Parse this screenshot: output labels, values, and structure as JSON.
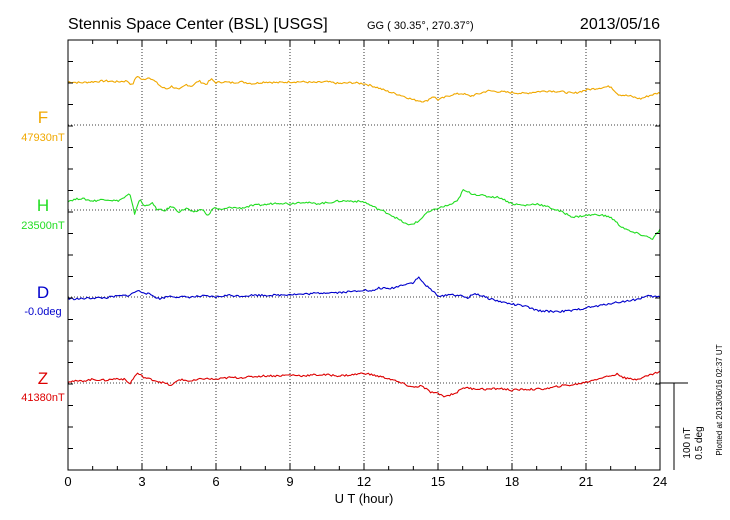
{
  "header": {
    "title": "Stennis Space Center (BSL)  [USGS]",
    "coords": "GG ( 30.35°, 270.37°)",
    "date": "2013/05/16"
  },
  "plotted_note": "Plotted at 2013/06/16 02:37 UT",
  "scale": {
    "nt": "100 nT",
    "deg": "0.5 deg"
  },
  "colors": {
    "F": "#f0a800",
    "H": "#22dd22",
    "D": "#0000cc",
    "Z": "#dd0000",
    "grid": "#000000"
  },
  "chart_data": {
    "type": "line",
    "xlabel": "U T (hour)",
    "xlim": [
      0,
      24
    ],
    "xticks": [
      0,
      3,
      6,
      9,
      12,
      15,
      18,
      21,
      24
    ],
    "series": [
      {
        "name": "F",
        "baseline_label": "47930nT",
        "color": "#f0a800",
        "points": [
          [
            0,
            48
          ],
          [
            0.5,
            47
          ],
          [
            1,
            48
          ],
          [
            1.5,
            49
          ],
          [
            2,
            48
          ],
          [
            2.4,
            49
          ],
          [
            2.6,
            44
          ],
          [
            2.8,
            55
          ],
          [
            3,
            50
          ],
          [
            3.3,
            53
          ],
          [
            3.5,
            49
          ],
          [
            3.8,
            42
          ],
          [
            4,
            40
          ],
          [
            4.2,
            43
          ],
          [
            4.5,
            39
          ],
          [
            4.8,
            45
          ],
          [
            5,
            43
          ],
          [
            5.3,
            49
          ],
          [
            5.6,
            45
          ],
          [
            5.8,
            51
          ],
          [
            6,
            47
          ],
          [
            6.3,
            48
          ],
          [
            6.6,
            47
          ],
          [
            7,
            48
          ],
          [
            7.5,
            46
          ],
          [
            8,
            48
          ],
          [
            8.5,
            47
          ],
          [
            9,
            48
          ],
          [
            9.5,
            48
          ],
          [
            10,
            47
          ],
          [
            10.5,
            48
          ],
          [
            11,
            46
          ],
          [
            11.5,
            47
          ],
          [
            12,
            46
          ],
          [
            12.5,
            42
          ],
          [
            13,
            37
          ],
          [
            13.5,
            33
          ],
          [
            14,
            28
          ],
          [
            14.5,
            26
          ],
          [
            14.8,
            32
          ],
          [
            15,
            28
          ],
          [
            15.3,
            31
          ],
          [
            15.6,
            34
          ],
          [
            16,
            35
          ],
          [
            16.3,
            32
          ],
          [
            16.7,
            35
          ],
          [
            17,
            38
          ],
          [
            17.5,
            37
          ],
          [
            18,
            36
          ],
          [
            18.5,
            35
          ],
          [
            19,
            37
          ],
          [
            19.5,
            38
          ],
          [
            20,
            37
          ],
          [
            20.5,
            35
          ],
          [
            21,
            39
          ],
          [
            21.5,
            41
          ],
          [
            22,
            43
          ],
          [
            22.3,
            34
          ],
          [
            22.8,
            32
          ],
          [
            23.2,
            29
          ],
          [
            23.6,
            33
          ],
          [
            24,
            36
          ]
        ]
      },
      {
        "name": "H",
        "baseline_label": "23500nT",
        "color": "#22dd22",
        "points": [
          [
            0,
            10
          ],
          [
            0.5,
            13
          ],
          [
            1,
            10
          ],
          [
            1.5,
            12
          ],
          [
            2,
            10
          ],
          [
            2.3,
            14
          ],
          [
            2.5,
            18
          ],
          [
            2.7,
            -4
          ],
          [
            2.9,
            12
          ],
          [
            3.1,
            4
          ],
          [
            3.4,
            8
          ],
          [
            3.6,
            1
          ],
          [
            3.9,
            -1
          ],
          [
            4.2,
            4
          ],
          [
            4.5,
            -2
          ],
          [
            4.8,
            2
          ],
          [
            5.1,
            -3
          ],
          [
            5.4,
            1
          ],
          [
            5.7,
            -6
          ],
          [
            5.9,
            3
          ],
          [
            6.2,
            0
          ],
          [
            6.6,
            3
          ],
          [
            7,
            2
          ],
          [
            7.5,
            5
          ],
          [
            8,
            6
          ],
          [
            8.5,
            8
          ],
          [
            9,
            7
          ],
          [
            9.5,
            9
          ],
          [
            10,
            7
          ],
          [
            10.5,
            8
          ],
          [
            11,
            10
          ],
          [
            11.5,
            10
          ],
          [
            12,
            9
          ],
          [
            12.5,
            2
          ],
          [
            13,
            -4
          ],
          [
            13.5,
            -12
          ],
          [
            13.8,
            -17
          ],
          [
            14.2,
            -13
          ],
          [
            14.5,
            -4
          ],
          [
            15,
            2
          ],
          [
            15.5,
            6
          ],
          [
            15.8,
            10
          ],
          [
            16,
            22
          ],
          [
            16.4,
            18
          ],
          [
            17,
            15
          ],
          [
            17.5,
            14
          ],
          [
            18,
            7
          ],
          [
            18.5,
            5
          ],
          [
            19,
            7
          ],
          [
            19.5,
            3
          ],
          [
            20,
            -2
          ],
          [
            20.5,
            -8
          ],
          [
            21,
            -6
          ],
          [
            21.5,
            -5
          ],
          [
            22,
            -8
          ],
          [
            22.4,
            -18
          ],
          [
            22.8,
            -24
          ],
          [
            23.3,
            -28
          ],
          [
            23.7,
            -32
          ],
          [
            24,
            -22
          ]
        ]
      },
      {
        "name": "D",
        "baseline_label": "-0.0deg",
        "color": "#0000cc",
        "points": [
          [
            0,
            -2
          ],
          [
            0.5,
            -2
          ],
          [
            1,
            -1
          ],
          [
            1.5,
            -1
          ],
          [
            2,
            1
          ],
          [
            2.5,
            2
          ],
          [
            2.8,
            7
          ],
          [
            3.1,
            5
          ],
          [
            3.4,
            2
          ],
          [
            3.7,
            -2
          ],
          [
            4.1,
            1
          ],
          [
            4.5,
            0
          ],
          [
            5,
            0
          ],
          [
            5.5,
            1
          ],
          [
            6,
            0
          ],
          [
            6.5,
            2
          ],
          [
            7,
            1
          ],
          [
            7.5,
            2
          ],
          [
            8,
            2
          ],
          [
            8.5,
            2
          ],
          [
            9,
            3
          ],
          [
            9.5,
            3
          ],
          [
            10,
            4
          ],
          [
            10.5,
            5
          ],
          [
            11,
            5
          ],
          [
            11.5,
            6
          ],
          [
            12,
            8
          ],
          [
            12.3,
            6
          ],
          [
            12.6,
            10
          ],
          [
            13,
            9
          ],
          [
            13.3,
            11
          ],
          [
            13.6,
            14
          ],
          [
            14,
            16
          ],
          [
            14.2,
            22
          ],
          [
            14.5,
            13
          ],
          [
            14.8,
            6
          ],
          [
            15.1,
            0
          ],
          [
            15.4,
            3
          ],
          [
            15.8,
            2
          ],
          [
            16.2,
            -1
          ],
          [
            16.5,
            4
          ],
          [
            17,
            -1
          ],
          [
            17.5,
            -5
          ],
          [
            18,
            -8
          ],
          [
            18.5,
            -10
          ],
          [
            19,
            -15
          ],
          [
            19.5,
            -16
          ],
          [
            20,
            -16
          ],
          [
            20.5,
            -15
          ],
          [
            21,
            -12
          ],
          [
            21.5,
            -10
          ],
          [
            22,
            -7
          ],
          [
            22.5,
            -5
          ],
          [
            23,
            -3
          ],
          [
            23.5,
            1
          ],
          [
            24,
            0
          ]
        ]
      },
      {
        "name": "Z",
        "baseline_label": "41380nT",
        "color": "#dd0000",
        "points": [
          [
            0,
            2
          ],
          [
            0.5,
            2
          ],
          [
            1,
            4
          ],
          [
            1.5,
            3
          ],
          [
            2,
            5
          ],
          [
            2.3,
            4
          ],
          [
            2.5,
            -1
          ],
          [
            2.8,
            11
          ],
          [
            3.1,
            6
          ],
          [
            3.5,
            3
          ],
          [
            3.9,
            0
          ],
          [
            4.2,
            -3
          ],
          [
            4.5,
            4
          ],
          [
            5,
            2
          ],
          [
            5.5,
            5
          ],
          [
            6,
            4
          ],
          [
            6.5,
            6
          ],
          [
            7,
            6
          ],
          [
            7.5,
            7
          ],
          [
            8,
            8
          ],
          [
            8.5,
            8
          ],
          [
            9,
            9
          ],
          [
            9.5,
            8
          ],
          [
            10,
            9
          ],
          [
            10.5,
            9
          ],
          [
            11,
            8
          ],
          [
            11.5,
            9
          ],
          [
            12,
            11
          ],
          [
            12.5,
            8
          ],
          [
            13,
            5
          ],
          [
            13.5,
            0
          ],
          [
            14,
            -5
          ],
          [
            14.3,
            -3
          ],
          [
            14.7,
            -10
          ],
          [
            15,
            -12
          ],
          [
            15.3,
            -15
          ],
          [
            15.8,
            -10
          ],
          [
            16,
            -5
          ],
          [
            16.3,
            -6
          ],
          [
            17,
            -7
          ],
          [
            17.5,
            -6
          ],
          [
            18,
            -8
          ],
          [
            18.5,
            -7
          ],
          [
            19,
            -7
          ],
          [
            19.5,
            -6
          ],
          [
            20,
            -3
          ],
          [
            20.5,
            -2
          ],
          [
            21,
            1
          ],
          [
            21.5,
            5
          ],
          [
            22,
            8
          ],
          [
            22.3,
            10
          ],
          [
            22.6,
            5
          ],
          [
            23,
            4
          ],
          [
            23.5,
            8
          ],
          [
            24,
            13
          ]
        ]
      }
    ]
  }
}
